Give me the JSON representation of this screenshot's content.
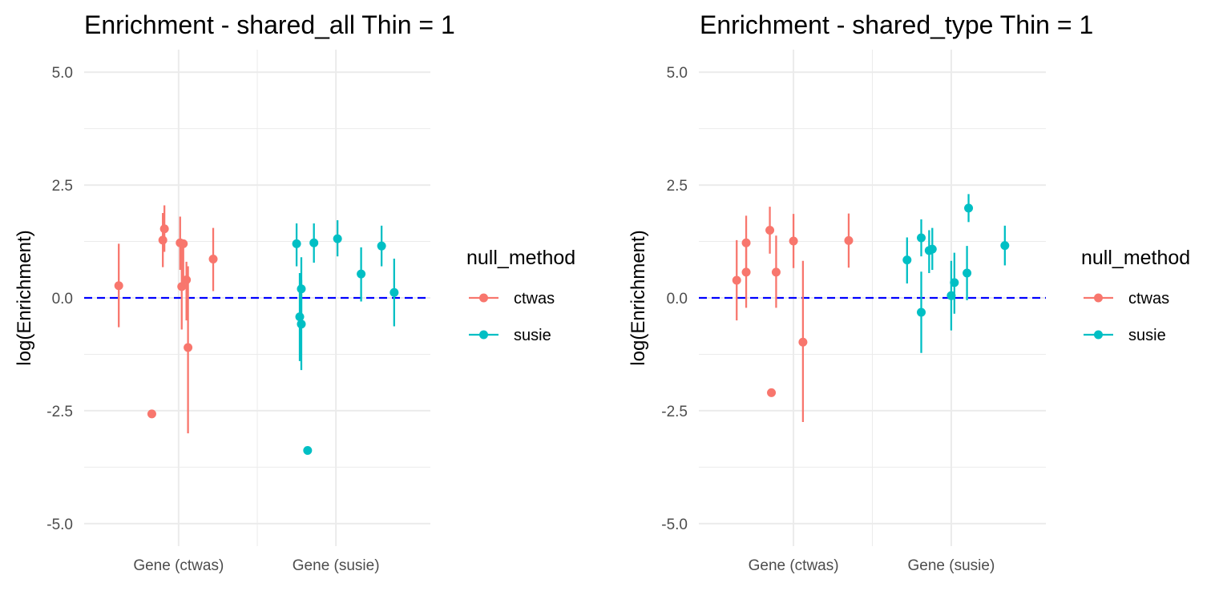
{
  "chart_data": [
    {
      "type": "scatter",
      "title": "Enrichment - shared_all Thin = 1",
      "xlabel": "",
      "ylabel": "log(Enrichment)",
      "categories": [
        "Gene (ctwas)",
        "Gene (susie)"
      ],
      "ylim": [
        -5.5,
        5.5
      ],
      "yticks": [
        "5.0",
        "2.5",
        "0.0",
        "-2.5",
        "-5.0"
      ],
      "ytick_values": [
        5,
        2.5,
        0,
        -2.5,
        -5
      ],
      "reference_line": {
        "y": 0,
        "color": "#0000ff",
        "style": "dashed"
      },
      "grid": true,
      "legend": {
        "title": "null_method",
        "position": "right",
        "entries": [
          "ctwas",
          "susie"
        ]
      },
      "series": [
        {
          "name": "ctwas",
          "color": "#f8766d",
          "points": [
            {
              "category": "Gene (ctwas)",
              "offset": -0.38,
              "y": 0.27,
              "lo": -0.65,
              "hi": 1.2
            },
            {
              "category": "Gene (ctwas)",
              "offset": -0.17,
              "y": -2.57,
              "lo": null,
              "hi": null
            },
            {
              "category": "Gene (ctwas)",
              "offset": -0.1,
              "y": 1.28,
              "lo": 0.68,
              "hi": 1.88
            },
            {
              "category": "Gene (ctwas)",
              "offset": -0.09,
              "y": 1.53,
              "lo": 1.02,
              "hi": 2.05
            },
            {
              "category": "Gene (ctwas)",
              "offset": 0.01,
              "y": 1.22,
              "lo": 0.62,
              "hi": 1.8
            },
            {
              "category": "Gene (ctwas)",
              "offset": 0.02,
              "y": 0.25,
              "lo": -0.7,
              "hi": 1.2
            },
            {
              "category": "Gene (ctwas)",
              "offset": 0.03,
              "y": 1.2,
              "lo": 0.3,
              "hi": 1.2
            },
            {
              "category": "Gene (ctwas)",
              "offset": 0.05,
              "y": 0.4,
              "lo": -0.5,
              "hi": 0.8
            },
            {
              "category": "Gene (ctwas)",
              "offset": 0.06,
              "y": -1.1,
              "lo": -3.0,
              "hi": 0.7
            },
            {
              "category": "Gene (ctwas)",
              "offset": 0.22,
              "y": 0.86,
              "lo": 0.15,
              "hi": 1.55
            }
          ]
        },
        {
          "name": "susie",
          "color": "#00bfc4",
          "points": [
            {
              "category": "Gene (susie)",
              "offset": -0.25,
              "y": 1.2,
              "lo": 0.7,
              "hi": 1.65
            },
            {
              "category": "Gene (susie)",
              "offset": -0.22,
              "y": 0.2,
              "lo": -0.5,
              "hi": 0.9
            },
            {
              "category": "Gene (susie)",
              "offset": -0.23,
              "y": -0.42,
              "lo": -1.4,
              "hi": 0.55
            },
            {
              "category": "Gene (susie)",
              "offset": -0.22,
              "y": -0.58,
              "lo": -1.6,
              "hi": 0.4
            },
            {
              "category": "Gene (susie)",
              "offset": -0.18,
              "y": -3.38,
              "lo": null,
              "hi": null
            },
            {
              "category": "Gene (susie)",
              "offset": -0.14,
              "y": 1.22,
              "lo": 0.78,
              "hi": 1.65
            },
            {
              "category": "Gene (susie)",
              "offset": 0.01,
              "y": 1.31,
              "lo": 0.92,
              "hi": 1.72
            },
            {
              "category": "Gene (susie)",
              "offset": 0.16,
              "y": 0.53,
              "lo": -0.08,
              "hi": 1.12
            },
            {
              "category": "Gene (susie)",
              "offset": 0.29,
              "y": 1.15,
              "lo": 0.7,
              "hi": 1.6
            },
            {
              "category": "Gene (susie)",
              "offset": 0.37,
              "y": 0.12,
              "lo": -0.63,
              "hi": 0.87
            }
          ]
        }
      ]
    },
    {
      "type": "scatter",
      "title": "Enrichment - shared_type Thin = 1",
      "xlabel": "",
      "ylabel": "log(Enrichment)",
      "categories": [
        "Gene (ctwas)",
        "Gene (susie)"
      ],
      "ylim": [
        -5.5,
        5.5
      ],
      "yticks": [
        "5.0",
        "2.5",
        "0.0",
        "-2.5",
        "-5.0"
      ],
      "ytick_values": [
        5,
        2.5,
        0,
        -2.5,
        -5
      ],
      "reference_line": {
        "y": 0,
        "color": "#0000ff",
        "style": "dashed"
      },
      "grid": true,
      "legend": {
        "title": "null_method",
        "position": "right",
        "entries": [
          "ctwas",
          "susie"
        ]
      },
      "series": [
        {
          "name": "ctwas",
          "color": "#f8766d",
          "points": [
            {
              "category": "Gene (ctwas)",
              "offset": -0.36,
              "y": 0.39,
              "lo": -0.5,
              "hi": 1.28
            },
            {
              "category": "Gene (ctwas)",
              "offset": -0.3,
              "y": 1.22,
              "lo": 0.62,
              "hi": 1.82
            },
            {
              "category": "Gene (ctwas)",
              "offset": -0.3,
              "y": 0.57,
              "lo": -0.22,
              "hi": 1.3
            },
            {
              "category": "Gene (ctwas)",
              "offset": -0.15,
              "y": 1.5,
              "lo": 0.98,
              "hi": 2.02
            },
            {
              "category": "Gene (ctwas)",
              "offset": -0.14,
              "y": -2.1,
              "lo": null,
              "hi": null
            },
            {
              "category": "Gene (ctwas)",
              "offset": -0.11,
              "y": 0.57,
              "lo": -0.22,
              "hi": 1.38
            },
            {
              "category": "Gene (ctwas)",
              "offset": 0.0,
              "y": 1.26,
              "lo": 0.66,
              "hi": 1.86
            },
            {
              "category": "Gene (ctwas)",
              "offset": 0.06,
              "y": -0.98,
              "lo": -2.75,
              "hi": 0.82
            },
            {
              "category": "Gene (ctwas)",
              "offset": 0.35,
              "y": 1.27,
              "lo": 0.67,
              "hi": 1.87
            }
          ]
        },
        {
          "name": "susie",
          "color": "#00bfc4",
          "points": [
            {
              "category": "Gene (susie)",
              "offset": -0.28,
              "y": 0.84,
              "lo": 0.32,
              "hi": 1.34
            },
            {
              "category": "Gene (susie)",
              "offset": -0.19,
              "y": 1.33,
              "lo": 0.92,
              "hi": 1.74
            },
            {
              "category": "Gene (susie)",
              "offset": -0.19,
              "y": -0.32,
              "lo": -1.22,
              "hi": 0.58
            },
            {
              "category": "Gene (susie)",
              "offset": -0.14,
              "y": 1.05,
              "lo": 0.55,
              "hi": 1.5
            },
            {
              "category": "Gene (susie)",
              "offset": -0.12,
              "y": 1.08,
              "lo": 0.62,
              "hi": 1.55
            },
            {
              "category": "Gene (susie)",
              "offset": 0.0,
              "y": 0.05,
              "lo": -0.72,
              "hi": 0.82
            },
            {
              "category": "Gene (susie)",
              "offset": 0.02,
              "y": 0.34,
              "lo": -0.35,
              "hi": 1.0
            },
            {
              "category": "Gene (susie)",
              "offset": 0.1,
              "y": 0.55,
              "lo": -0.05,
              "hi": 1.15
            },
            {
              "category": "Gene (susie)",
              "offset": 0.11,
              "y": 1.99,
              "lo": 1.68,
              "hi": 2.3
            },
            {
              "category": "Gene (susie)",
              "offset": 0.34,
              "y": 1.16,
              "lo": 0.72,
              "hi": 1.6
            }
          ]
        }
      ]
    }
  ]
}
